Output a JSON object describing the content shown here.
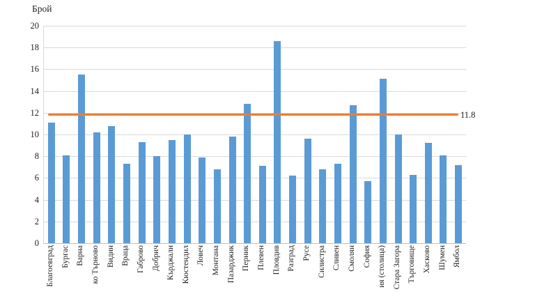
{
  "chart_data": {
    "type": "bar",
    "title": "Брой",
    "categories": [
      "Благоевград",
      "Бургас",
      "Варна",
      "ко Търново",
      "Видин",
      "Враца",
      "Габрово",
      "Добрич",
      "Кърджали",
      "Кюстендил",
      "Ловеч",
      "Монтана",
      "Пазарджик",
      "Перник",
      "Плевен",
      "Пловдив",
      "Разград",
      "Русе",
      "Силистра",
      "Сливен",
      "Смолян",
      "София",
      "ия (столица)",
      "Стара Загора",
      "Търговище",
      "Хасково",
      "Шумен",
      "Ямбол"
    ],
    "values": [
      11.1,
      8.1,
      15.5,
      10.2,
      10.8,
      7.3,
      9.3,
      8.0,
      9.5,
      10.0,
      7.9,
      6.8,
      9.8,
      12.8,
      7.1,
      18.6,
      6.2,
      9.6,
      6.8,
      7.3,
      12.7,
      5.7,
      15.1,
      10.0,
      6.3,
      9.2,
      8.1,
      7.2
    ],
    "xlabel": "",
    "ylabel": "Брой",
    "ylim": [
      0,
      20
    ],
    "yticks": [
      0,
      2,
      4,
      6,
      8,
      10,
      12,
      14,
      16,
      18,
      20
    ],
    "grid": true,
    "legend": "none",
    "bar_color": "#5B9BD5",
    "gridline_color": "#D9D9D9",
    "axis_line_color": "#BFBFBF",
    "reference_line": {
      "value": 11.8,
      "label": "11.8",
      "color": "#ED7D31"
    }
  }
}
